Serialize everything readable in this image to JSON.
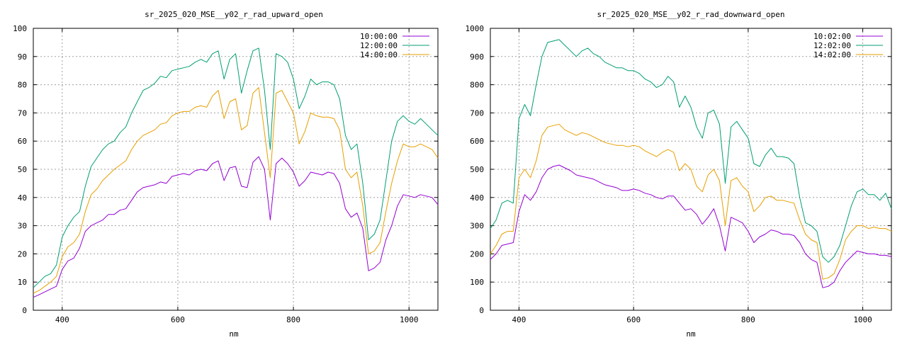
{
  "chart_data": [
    {
      "type": "line",
      "title": "sr_2025_020_MSE__y02_r_rad_upward_open",
      "xlabel": "nm",
      "ylabel": "",
      "xlim": [
        350,
        1050
      ],
      "ylim": [
        0,
        100
      ],
      "xticks": [
        400,
        600,
        800,
        1000
      ],
      "yticks": [
        0,
        10,
        20,
        30,
        40,
        50,
        60,
        70,
        80,
        90,
        100
      ],
      "grid": true,
      "legend_position": "top-right",
      "series": [
        {
          "name": "10:00:00",
          "color": "#9400d3",
          "x": [
            350,
            360,
            370,
            380,
            390,
            400,
            410,
            420,
            430,
            440,
            450,
            460,
            470,
            480,
            490,
            500,
            510,
            520,
            530,
            540,
            550,
            560,
            570,
            580,
            590,
            600,
            610,
            620,
            630,
            640,
            650,
            660,
            670,
            680,
            690,
            700,
            710,
            720,
            730,
            740,
            750,
            760,
            770,
            780,
            790,
            800,
            810,
            820,
            830,
            840,
            850,
            860,
            870,
            880,
            890,
            900,
            910,
            920,
            930,
            940,
            950,
            960,
            970,
            980,
            990,
            1000,
            1010,
            1020,
            1030,
            1040,
            1050
          ],
          "y": [
            4.6,
            5.5,
            6.5,
            7.5,
            8.5,
            14.5,
            17.5,
            18.5,
            22,
            28,
            30,
            31,
            32,
            34,
            34,
            35.5,
            36,
            39,
            42,
            43.5,
            44,
            44.5,
            45.5,
            45,
            47.5,
            48,
            48.5,
            48,
            49.5,
            50,
            49.5,
            52,
            53,
            46,
            50.5,
            51,
            44,
            43.5,
            52.5,
            54.5,
            50,
            32,
            52,
            54,
            52,
            49,
            44,
            46,
            49,
            48.5,
            48,
            49,
            48.5,
            45,
            36,
            33,
            34.5,
            29,
            14,
            15,
            17,
            25,
            30,
            37,
            41,
            40.5,
            40,
            41,
            40.5,
            40,
            37.5
          ]
        },
        {
          "name": "12:00:00",
          "color": "#009e73",
          "x": [
            350,
            360,
            370,
            380,
            390,
            400,
            410,
            420,
            430,
            440,
            450,
            460,
            470,
            480,
            490,
            500,
            510,
            520,
            530,
            540,
            550,
            560,
            570,
            580,
            590,
            600,
            610,
            620,
            630,
            640,
            650,
            660,
            670,
            680,
            690,
            700,
            710,
            720,
            730,
            740,
            750,
            760,
            770,
            780,
            790,
            800,
            810,
            820,
            830,
            840,
            850,
            860,
            870,
            880,
            890,
            900,
            910,
            920,
            930,
            940,
            950,
            960,
            970,
            980,
            990,
            1000,
            1010,
            1020,
            1030,
            1040,
            1050
          ],
          "y": [
            8,
            10,
            12,
            13,
            16,
            26,
            30,
            33,
            35,
            44,
            51,
            54,
            57,
            59,
            60,
            63,
            65,
            70,
            74,
            78,
            79,
            80.5,
            83,
            82.5,
            85,
            85.5,
            86,
            86.5,
            88,
            89,
            88,
            91,
            92,
            82,
            89,
            91,
            77,
            85,
            92,
            93,
            78,
            57,
            91,
            90,
            88,
            82,
            71.5,
            76,
            82,
            80,
            81,
            81,
            80,
            75,
            62,
            57,
            59,
            45,
            25,
            27,
            32,
            46,
            60,
            67,
            69,
            67,
            66,
            68,
            66,
            64,
            62
          ]
        },
        {
          "name": "14:00:00",
          "color": "#e69f00",
          "x": [
            350,
            360,
            370,
            380,
            390,
            400,
            410,
            420,
            430,
            440,
            450,
            460,
            470,
            480,
            490,
            500,
            510,
            520,
            530,
            540,
            550,
            560,
            570,
            580,
            590,
            600,
            610,
            620,
            630,
            640,
            650,
            660,
            670,
            680,
            690,
            700,
            710,
            720,
            730,
            740,
            750,
            760,
            770,
            780,
            790,
            800,
            810,
            820,
            830,
            840,
            850,
            860,
            870,
            880,
            890,
            900,
            910,
            920,
            930,
            940,
            950,
            960,
            970,
            980,
            990,
            1000,
            1010,
            1020,
            1030,
            1040,
            1050
          ],
          "y": [
            6,
            7,
            8.5,
            10,
            12,
            19,
            22.5,
            24,
            27,
            35,
            41,
            43,
            46,
            48,
            50,
            51.5,
            53,
            57,
            60,
            62,
            63,
            64,
            66,
            66.5,
            69,
            70,
            70.5,
            70.5,
            72,
            72.5,
            72,
            76,
            78,
            68,
            74,
            75,
            64,
            65.5,
            77,
            79,
            63,
            47,
            77,
            78,
            74,
            70,
            59,
            63.5,
            70,
            69,
            68.5,
            68.5,
            68,
            64,
            50,
            47,
            49,
            37,
            20,
            21,
            24,
            35,
            45,
            53,
            59,
            58,
            58,
            59,
            58,
            57,
            54
          ]
        }
      ]
    },
    {
      "type": "line",
      "title": "sr_2025_020_MSE__y02_r_rad_downward_open",
      "xlabel": "nm",
      "ylabel": "",
      "xlim": [
        350,
        1050
      ],
      "ylim": [
        0,
        1000
      ],
      "xticks": [
        400,
        600,
        800,
        1000
      ],
      "yticks": [
        0,
        100,
        200,
        300,
        400,
        500,
        600,
        700,
        800,
        900,
        1000
      ],
      "grid": true,
      "legend_position": "top-right",
      "series": [
        {
          "name": "10:02:00",
          "color": "#9400d3",
          "x": [
            350,
            360,
            370,
            380,
            390,
            400,
            410,
            420,
            430,
            440,
            450,
            460,
            470,
            480,
            490,
            500,
            510,
            520,
            530,
            540,
            550,
            560,
            570,
            580,
            590,
            600,
            610,
            620,
            630,
            640,
            650,
            660,
            670,
            680,
            690,
            700,
            710,
            720,
            730,
            740,
            750,
            760,
            770,
            780,
            790,
            800,
            810,
            820,
            830,
            840,
            850,
            860,
            870,
            880,
            890,
            900,
            910,
            920,
            930,
            940,
            950,
            960,
            970,
            980,
            990,
            1000,
            1010,
            1020,
            1030,
            1040,
            1050
          ],
          "y": [
            180,
            200,
            230,
            235,
            240,
            350,
            410,
            390,
            420,
            470,
            500,
            510,
            515,
            505,
            495,
            480,
            475,
            470,
            465,
            455,
            445,
            440,
            435,
            425,
            425,
            430,
            425,
            415,
            410,
            400,
            395,
            405,
            405,
            380,
            355,
            360,
            340,
            305,
            330,
            360,
            300,
            210,
            330,
            320,
            310,
            280,
            240,
            260,
            270,
            285,
            280,
            270,
            270,
            265,
            240,
            200,
            180,
            170,
            80,
            85,
            100,
            140,
            170,
            190,
            210,
            205,
            200,
            200,
            195,
            195,
            190
          ]
        },
        {
          "name": "12:02:00",
          "color": "#009e73",
          "x": [
            350,
            360,
            370,
            380,
            390,
            400,
            410,
            420,
            430,
            440,
            450,
            460,
            470,
            480,
            490,
            500,
            510,
            520,
            530,
            540,
            550,
            560,
            570,
            580,
            590,
            600,
            610,
            620,
            630,
            640,
            650,
            660,
            670,
            680,
            690,
            700,
            710,
            720,
            730,
            740,
            750,
            760,
            770,
            780,
            790,
            800,
            810,
            820,
            830,
            840,
            850,
            860,
            870,
            880,
            890,
            900,
            910,
            920,
            930,
            940,
            950,
            960,
            970,
            980,
            990,
            1000,
            1010,
            1020,
            1030,
            1040,
            1050
          ],
          "y": [
            290,
            320,
            380,
            390,
            380,
            680,
            730,
            690,
            800,
            900,
            950,
            955,
            960,
            940,
            920,
            900,
            920,
            930,
            910,
            900,
            880,
            870,
            860,
            860,
            850,
            850,
            840,
            820,
            810,
            790,
            800,
            830,
            810,
            720,
            760,
            720,
            650,
            610,
            700,
            710,
            660,
            450,
            650,
            670,
            640,
            610,
            520,
            510,
            550,
            575,
            545,
            545,
            540,
            520,
            400,
            310,
            300,
            280,
            190,
            170,
            190,
            230,
            300,
            370,
            420,
            430,
            410,
            410,
            390,
            415,
            360
          ]
        },
        {
          "name": "14:02:00",
          "color": "#e69f00",
          "x": [
            350,
            360,
            370,
            380,
            390,
            400,
            410,
            420,
            430,
            440,
            450,
            460,
            470,
            480,
            490,
            500,
            510,
            520,
            530,
            540,
            550,
            560,
            570,
            580,
            590,
            600,
            610,
            620,
            630,
            640,
            650,
            660,
            670,
            680,
            690,
            700,
            710,
            720,
            730,
            740,
            750,
            760,
            770,
            780,
            790,
            800,
            810,
            820,
            830,
            840,
            850,
            860,
            870,
            880,
            890,
            900,
            910,
            920,
            930,
            940,
            950,
            960,
            970,
            980,
            990,
            1000,
            1010,
            1020,
            1030,
            1040,
            1050
          ],
          "y": [
            200,
            230,
            270,
            280,
            280,
            470,
            500,
            470,
            530,
            620,
            650,
            655,
            660,
            640,
            630,
            620,
            630,
            625,
            615,
            605,
            595,
            590,
            585,
            585,
            580,
            585,
            580,
            565,
            555,
            545,
            560,
            570,
            560,
            495,
            520,
            500,
            440,
            420,
            480,
            500,
            460,
            300,
            460,
            470,
            440,
            420,
            350,
            370,
            400,
            405,
            390,
            390,
            385,
            380,
            320,
            270,
            250,
            240,
            110,
            115,
            130,
            180,
            250,
            280,
            300,
            300,
            290,
            295,
            290,
            290,
            280
          ]
        }
      ]
    }
  ]
}
